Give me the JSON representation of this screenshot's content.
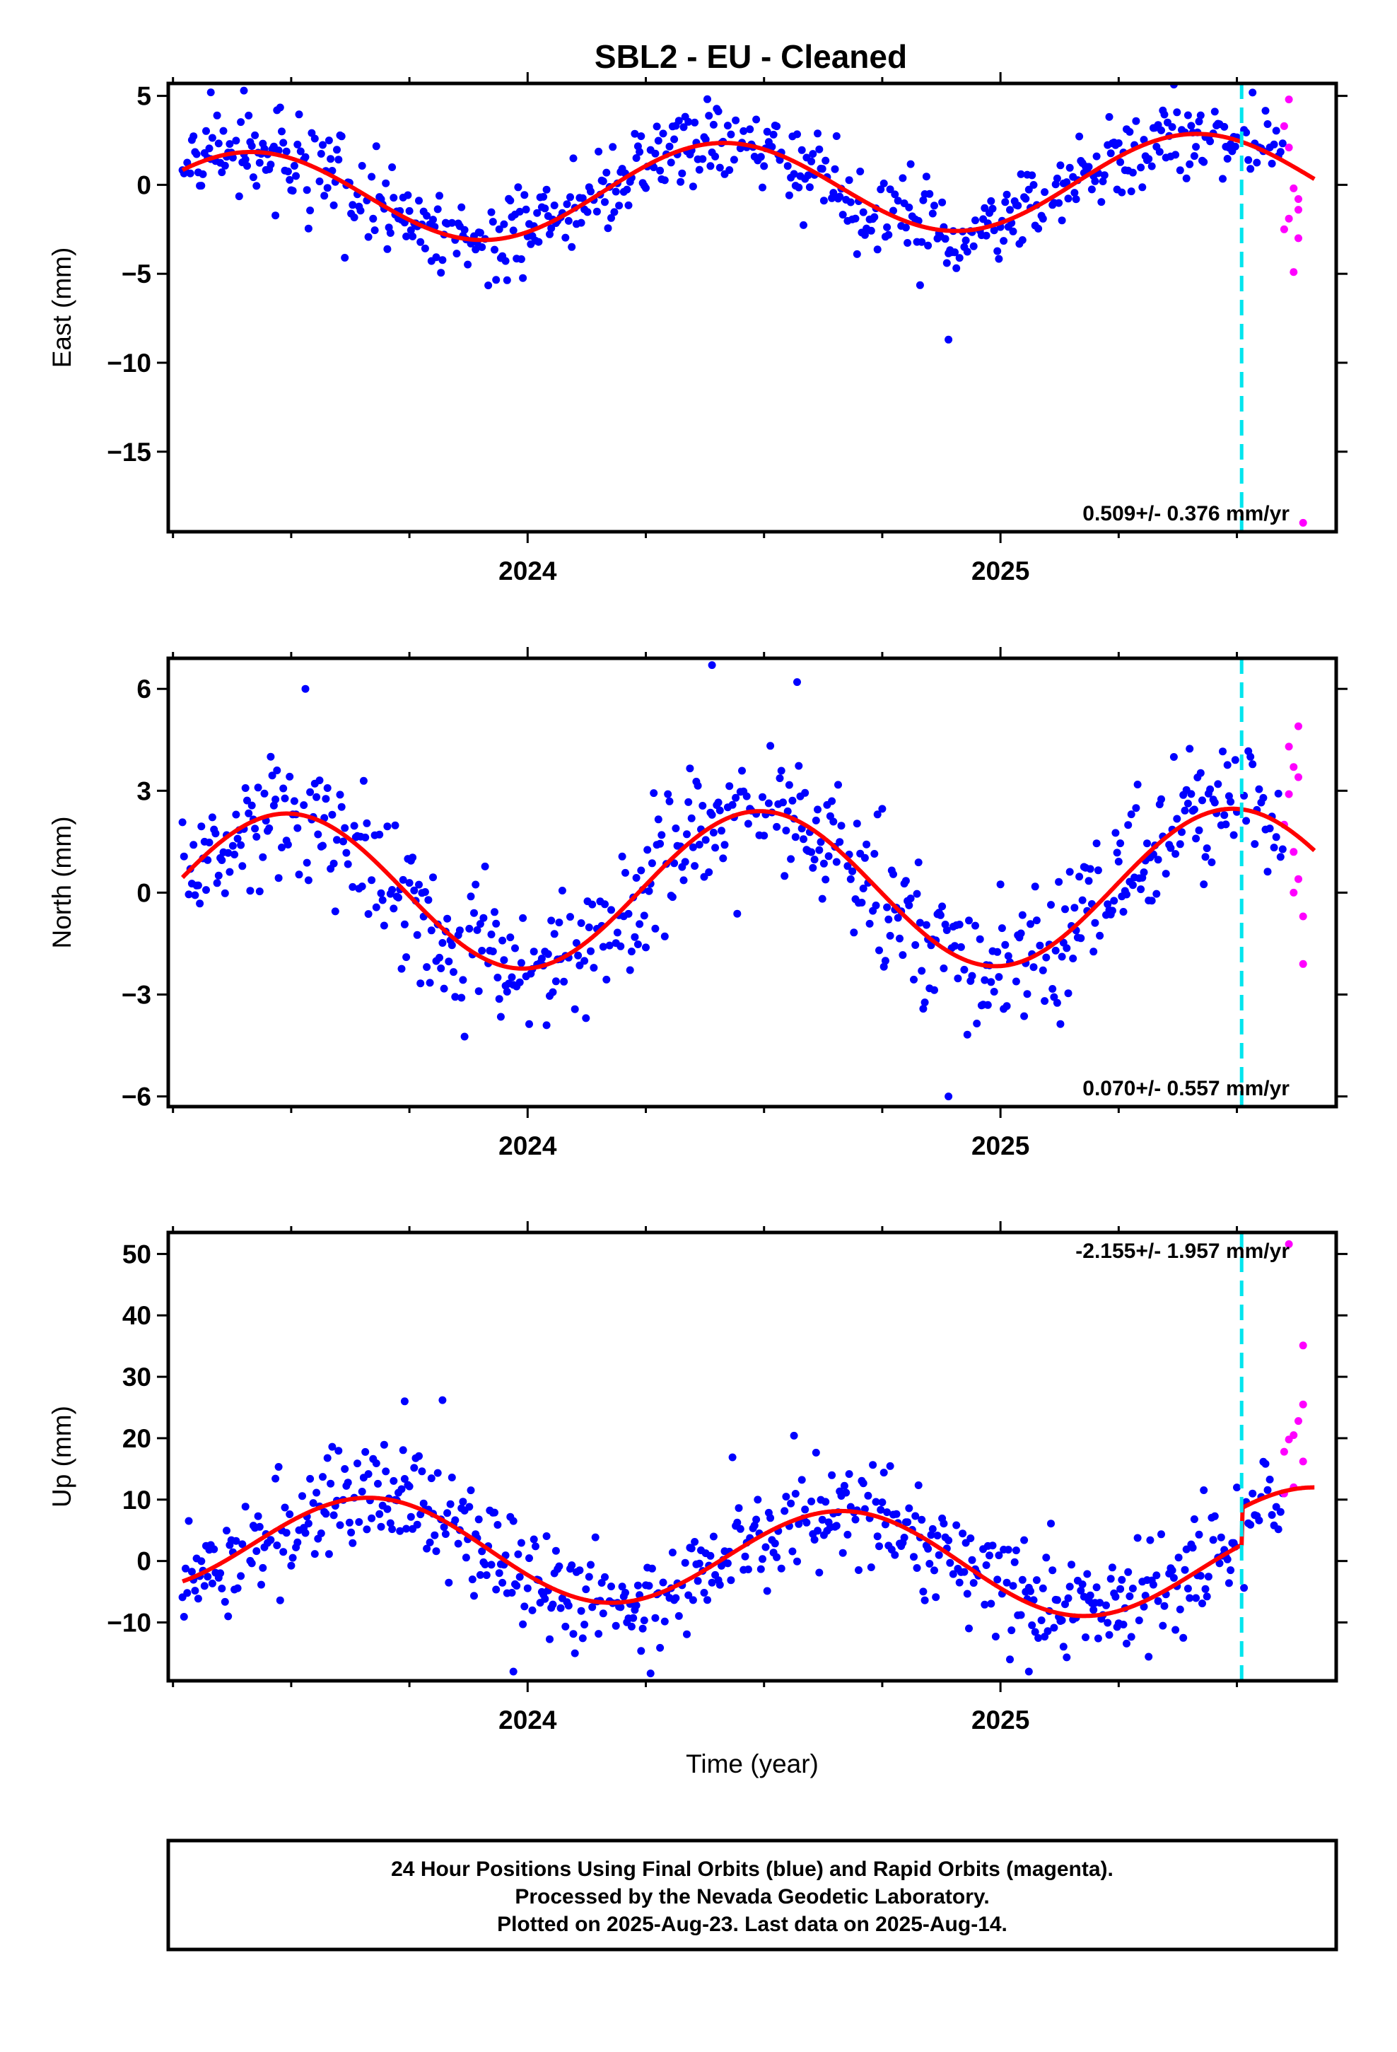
{
  "title": "SBL2  - EU - Cleaned",
  "footer": {
    "lines": [
      "24 Hour Positions Using Final Orbits (blue) and Rapid Orbits (magenta).",
      "Processed by the Nevada Geodetic Laboratory.",
      "Plotted on 2025-Aug-23. Last data on 2025-Aug-14."
    ]
  },
  "colors": {
    "final": "#0000ff",
    "rapid": "#ff00ff",
    "model": "#ff0000",
    "marker": "#00e5ee",
    "frame": "#000000"
  },
  "chart_data": [
    {
      "type": "scatter",
      "ylabel": "East (mm)",
      "xlabel": "",
      "xlim": [
        2023.24,
        2025.71
      ],
      "ylim": [
        -19.5,
        5.7
      ],
      "yticks": [
        5,
        0,
        -5,
        -10,
        -15
      ],
      "yticklabels": [
        "5",
        "0",
        "−5",
        "−10",
        "−15"
      ],
      "xticks": [
        2024,
        2025
      ],
      "xticklabels": [
        "2024",
        "2025"
      ],
      "rate": "0.509+/- 0.376 mm/yr",
      "marker_x": 2025.51,
      "model": {
        "mean": -0.2,
        "trend": 0.509,
        "amp": 2.6,
        "phase": 0.16,
        "xref": 2024.5
      },
      "noise": 1.2,
      "outliers": [
        [
          2024.89,
          -8.7
        ],
        [
          2023.33,
          5.2
        ],
        [
          2023.4,
          5.3
        ]
      ],
      "rapid": [
        [
          2025.61,
          4.8
        ],
        [
          2025.6,
          3.3
        ],
        [
          2025.61,
          2.1
        ],
        [
          2025.62,
          -0.2
        ],
        [
          2025.63,
          -0.8
        ],
        [
          2025.63,
          -1.4
        ],
        [
          2025.61,
          -1.9
        ],
        [
          2025.6,
          -2.5
        ],
        [
          2025.63,
          -3.0
        ],
        [
          2025.62,
          -4.9
        ],
        [
          2025.64,
          -19.0
        ]
      ]
    },
    {
      "type": "scatter",
      "ylabel": "North (mm)",
      "xlabel": "",
      "xlim": [
        2023.24,
        2025.71
      ],
      "ylim": [
        -6.3,
        6.9
      ],
      "yticks": [
        6,
        3,
        0,
        -3,
        -6
      ],
      "yticklabels": [
        "6",
        "3",
        "0",
        "−3",
        "−6"
      ],
      "xticks": [
        2024,
        2025
      ],
      "xticklabels": [
        "2024",
        "2025"
      ],
      "rate": "0.070+/- 0.557 mm/yr",
      "marker_x": 2025.51,
      "model": {
        "mean": 0.1,
        "trend": 0.07,
        "amp": 2.3,
        "phase": 0.24,
        "xref": 2024.5
      },
      "noise": 1.0,
      "outliers": [
        [
          2024.39,
          6.7
        ],
        [
          2024.89,
          -6.0
        ],
        [
          2023.53,
          6.0
        ],
        [
          2024.57,
          6.2
        ]
      ],
      "rapid": [
        [
          2025.63,
          4.9
        ],
        [
          2025.61,
          4.3
        ],
        [
          2025.62,
          3.7
        ],
        [
          2025.63,
          3.4
        ],
        [
          2025.61,
          2.9
        ],
        [
          2025.6,
          2.0
        ],
        [
          2025.62,
          1.2
        ],
        [
          2025.63,
          0.4
        ],
        [
          2025.62,
          0.0
        ],
        [
          2025.64,
          -0.7
        ],
        [
          2025.64,
          -2.1
        ]
      ]
    },
    {
      "type": "scatter",
      "ylabel": "Up (mm)",
      "xlabel": "Time (year)",
      "xlim": [
        2023.24,
        2025.71
      ],
      "ylim": [
        -19.5,
        53.5
      ],
      "yticks": [
        50,
        40,
        30,
        20,
        10,
        0,
        -10
      ],
      "yticklabels": [
        "50",
        "40",
        "30",
        "20",
        "10",
        "0",
        "−10"
      ],
      "xticks": [
        2024,
        2025
      ],
      "xticklabels": [
        "2024",
        "2025"
      ],
      "rate": "-2.155+/- 1.957 mm/yr",
      "marker_x": 2025.51,
      "model": {
        "mean": 0.5,
        "trend": -2.155,
        "amp": 8.0,
        "phase": 0.42,
        "xref": 2024.5,
        "step": 6.0
      },
      "noise": 4.5,
      "outliers": [
        [
          2023.74,
          26.0
        ],
        [
          2023.82,
          26.2
        ],
        [
          2023.97,
          -18.0
        ],
        [
          2024.26,
          -18.3
        ],
        [
          2025.06,
          -18.0
        ]
      ],
      "rapid": [
        [
          2025.61,
          51.6
        ],
        [
          2025.64,
          35.1
        ],
        [
          2025.64,
          25.5
        ],
        [
          2025.63,
          22.8
        ],
        [
          2025.62,
          20.5
        ],
        [
          2025.61,
          19.8
        ],
        [
          2025.6,
          17.8
        ],
        [
          2025.64,
          16.2
        ],
        [
          2025.62,
          12.0
        ],
        [
          2025.6,
          11.0
        ]
      ]
    }
  ]
}
